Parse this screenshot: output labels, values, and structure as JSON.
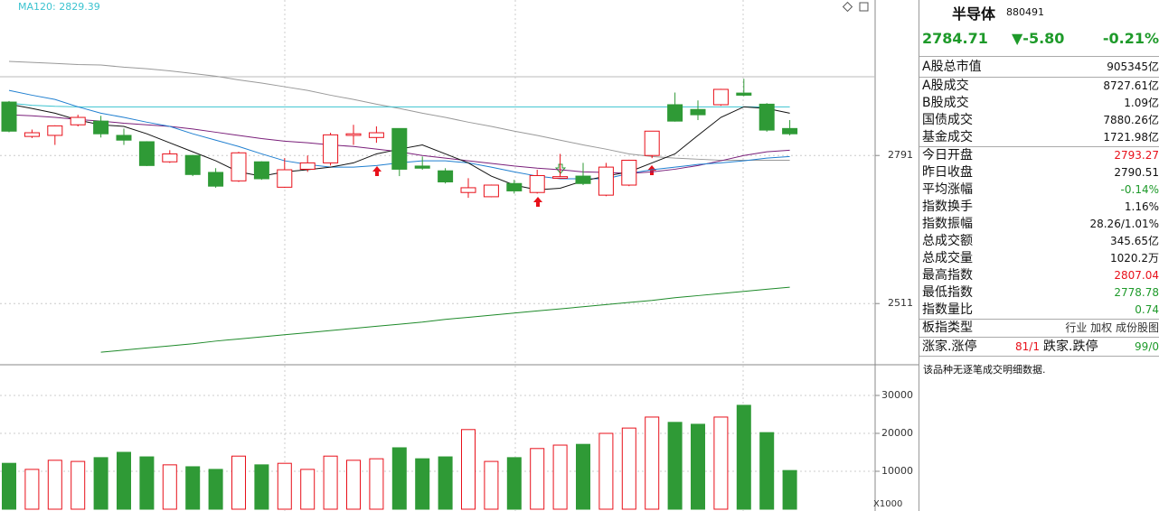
{
  "chart_data": [
    {
      "type": "candlestick",
      "up_color": "#e8101a",
      "down_color": "#2f9a36",
      "ylim": [
        2397,
        3085
      ],
      "yticks": [
        2511,
        2791
      ],
      "grid": true,
      "candles": {
        "open": [
          2892,
          2827,
          2829,
          2849,
          2856,
          2829,
          2817,
          2779,
          2791,
          2759,
          2743,
          2779,
          2731,
          2765,
          2777,
          2829,
          2825,
          2842,
          2771,
          2762,
          2721,
          2713,
          2738,
          2721,
          2748,
          2752,
          2716,
          2735,
          2791,
          2887,
          2878,
          2887,
          2909,
          2888,
          2842
        ],
        "high": [
          2894,
          2840,
          2848,
          2868,
          2866,
          2842,
          2818,
          2801,
          2792,
          2767,
          2798,
          2780,
          2786,
          2791,
          2834,
          2849,
          2846,
          2842,
          2789,
          2767,
          2748,
          2736,
          2745,
          2764,
          2794,
          2777,
          2777,
          2783,
          2837,
          2910,
          2895,
          2917,
          2936,
          2890,
          2858
        ],
        "low": [
          2835,
          2824,
          2811,
          2846,
          2825,
          2811,
          2771,
          2777,
          2752,
          2730,
          2741,
          2745,
          2730,
          2760,
          2772,
          2811,
          2815,
          2752,
          2764,
          2738,
          2711,
          2712,
          2719,
          2719,
          2748,
          2735,
          2714,
          2733,
          2786,
          2855,
          2858,
          2885,
          2903,
          2836,
          2829
        ],
        "close": [
          2837,
          2834,
          2847,
          2863,
          2832,
          2820,
          2772,
          2794,
          2755,
          2733,
          2796,
          2747,
          2764,
          2777,
          2830,
          2832,
          2834,
          2765,
          2767,
          2741,
          2730,
          2735,
          2724,
          2753,
          2751,
          2738,
          2769,
          2782,
          2837,
          2856,
          2868,
          2916,
          2905,
          2839,
          2832
        ]
      },
      "series": [
        {
          "color": "#999999",
          "values": [
            2969,
            2967,
            2965,
            2963,
            2962,
            2958,
            2955,
            2951,
            2946,
            2941,
            2934,
            2928,
            2921,
            2914,
            2905,
            2897,
            2888,
            2880,
            2871,
            2863,
            2854,
            2846,
            2837,
            2829,
            2820,
            2811,
            2803,
            2794,
            2789,
            2786,
            2784,
            2782,
            2782,
            2782,
            2782
          ]
        },
        {
          "name": "MA120: 2829.39",
          "color": "#3cc3d0",
          "values": [
            2890,
            2886,
            2884,
            2883,
            2883,
            2883,
            2883,
            2883,
            2883,
            2883,
            2883,
            2883,
            2883,
            2883,
            2883,
            2883,
            2883,
            2883,
            2883,
            2883,
            2883,
            2883,
            2883,
            2883,
            2883,
            2883,
            2883,
            2883,
            2883,
            2883,
            2883,
            2883,
            2883,
            2883,
            2883
          ]
        },
        {
          "color": "#7a1f7a",
          "values": [
            2868,
            2866,
            2863,
            2859,
            2856,
            2852,
            2849,
            2846,
            2841,
            2835,
            2829,
            2823,
            2818,
            2815,
            2811,
            2808,
            2803,
            2798,
            2791,
            2786,
            2781,
            2776,
            2771,
            2767,
            2764,
            2760,
            2759,
            2757,
            2760,
            2765,
            2772,
            2781,
            2791,
            2798,
            2801
          ]
        },
        {
          "color": "#1f7fd0",
          "values": [
            2914,
            2905,
            2897,
            2883,
            2871,
            2863,
            2854,
            2846,
            2832,
            2820,
            2808,
            2794,
            2781,
            2774,
            2769,
            2769,
            2772,
            2777,
            2781,
            2781,
            2777,
            2769,
            2760,
            2752,
            2747,
            2747,
            2747,
            2757,
            2764,
            2769,
            2774,
            2777,
            2781,
            2786,
            2789
          ]
        },
        {
          "color": "#111111",
          "values": [
            2888,
            2880,
            2871,
            2858,
            2849,
            2846,
            2832,
            2815,
            2798,
            2781,
            2760,
            2752,
            2760,
            2764,
            2769,
            2777,
            2794,
            2803,
            2811,
            2794,
            2777,
            2752,
            2735,
            2726,
            2729,
            2743,
            2752,
            2760,
            2777,
            2794,
            2829,
            2863,
            2883,
            2880,
            2871
          ]
        },
        {
          "color": "#1e8a2a",
          "values": [
            null,
            null,
            null,
            null,
            2419,
            2423,
            2427,
            2431,
            2435,
            2440,
            2444,
            2448,
            2452,
            2456,
            2460,
            2464,
            2468,
            2472,
            2476,
            2481,
            2485,
            2489,
            2493,
            2497,
            2501,
            2505,
            2509,
            2513,
            2517,
            2522,
            2526,
            2530,
            2534,
            2538,
            2542
          ]
        }
      ]
    },
    {
      "type": "bar",
      "ylim": [
        0,
        37860
      ],
      "yticks": [
        10000,
        20000,
        30000
      ],
      "grid": true,
      "unit_label": "X1000",
      "values": [
        12100,
        10500,
        12900,
        12600,
        13600,
        15000,
        13800,
        11700,
        11200,
        10500,
        14000,
        11700,
        12100,
        10500,
        14000,
        12900,
        13300,
        16200,
        13300,
        13800,
        21000,
        12600,
        13600,
        16000,
        16900,
        17100,
        20000,
        21400,
        24300,
        22900,
        22400,
        24300,
        27400,
        20200,
        10200
      ]
    }
  ],
  "sidebar": {
    "name": "半导体",
    "code": "880491",
    "price": "2784.71",
    "change": "▼-5.80",
    "pct": "-0.21%",
    "quote_color": "#1e9a2a",
    "rows": [
      {
        "label": "A股总市值",
        "value": "905345亿",
        "color": "#111111"
      },
      {
        "label": "A股成交",
        "value": "8727.61亿",
        "color": "#111111"
      },
      {
        "label": "B股成交",
        "value": "1.09亿",
        "color": "#111111"
      },
      {
        "label": "国债成交",
        "value": "7880.26亿",
        "color": "#111111"
      },
      {
        "label": "基金成交",
        "value": "1721.98亿",
        "color": "#111111"
      },
      {
        "label": "今日开盘",
        "value": "2793.27",
        "color": "#e8101a"
      },
      {
        "label": "昨日收盘",
        "value": "2790.51",
        "color": "#111111"
      },
      {
        "label": "平均涨幅",
        "value": "-0.14%",
        "color": "#1e9a2a"
      },
      {
        "label": "指数换手",
        "value": "1.16%",
        "color": "#111111"
      },
      {
        "label": "指数振幅",
        "value": "28.26/1.01%",
        "color": "#111111"
      },
      {
        "label": "总成交额",
        "value": "345.65亿",
        "color": "#111111"
      },
      {
        "label": "总成交量",
        "value": "1020.2万",
        "color": "#111111"
      },
      {
        "label": "最高指数",
        "value": "2807.04",
        "color": "#e8101a"
      },
      {
        "label": "最低指数",
        "value": "2778.78",
        "color": "#1e9a2a"
      },
      {
        "label": "指数量比",
        "value": "0.74",
        "color": "#1e9a2a"
      },
      {
        "label": "板指类型",
        "value": "行业 加权 成份股图",
        "color": "#333333"
      }
    ],
    "breadth": {
      "up_label": "涨家.涨停",
      "up_value": "81/1",
      "down_label": "跌家.跌停",
      "down_value": "99/0"
    },
    "note": "该品种无逐笔成交明细数据."
  }
}
